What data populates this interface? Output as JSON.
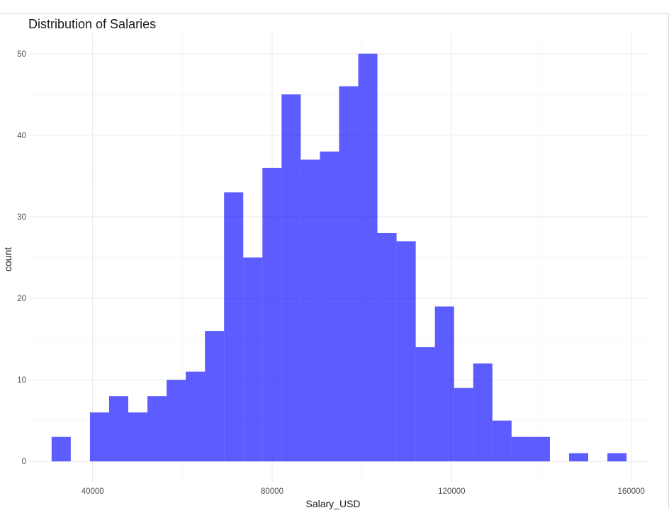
{
  "chart_data": {
    "type": "bar",
    "subtype": "histogram",
    "title": "Distribution of Salaries",
    "xlabel": "Salary_USD",
    "ylabel": "count",
    "xlim": [
      26000,
      164000
    ],
    "ylim": [
      -2.5,
      52.5
    ],
    "x_ticks": [
      40000,
      80000,
      120000,
      160000
    ],
    "x_tick_labels": [
      "40000",
      "80000",
      "120000",
      "160000"
    ],
    "x_minor_ticks": [
      60000,
      100000,
      140000
    ],
    "y_ticks": [
      0,
      10,
      20,
      30,
      40,
      50
    ],
    "y_tick_labels": [
      "0",
      "10",
      "20",
      "30",
      "40",
      "50"
    ],
    "y_minor_ticks": [
      5,
      15,
      25,
      35,
      45
    ],
    "bin_width": 4270,
    "bar_color": "#0000ff",
    "bar_alpha": 0.64,
    "grid": true,
    "legend": "none",
    "bins": [
      {
        "x": 33000,
        "count": 3
      },
      {
        "x": 37270,
        "count": 0
      },
      {
        "x": 41540,
        "count": 6
      },
      {
        "x": 45810,
        "count": 8
      },
      {
        "x": 50080,
        "count": 6
      },
      {
        "x": 54350,
        "count": 8
      },
      {
        "x": 58620,
        "count": 10
      },
      {
        "x": 62890,
        "count": 11
      },
      {
        "x": 67160,
        "count": 16
      },
      {
        "x": 71430,
        "count": 33
      },
      {
        "x": 75700,
        "count": 25
      },
      {
        "x": 79970,
        "count": 36
      },
      {
        "x": 84240,
        "count": 45
      },
      {
        "x": 88510,
        "count": 37
      },
      {
        "x": 92780,
        "count": 38
      },
      {
        "x": 97050,
        "count": 46
      },
      {
        "x": 101320,
        "count": 50
      },
      {
        "x": 105590,
        "count": 28
      },
      {
        "x": 109860,
        "count": 27
      },
      {
        "x": 114130,
        "count": 14
      },
      {
        "x": 118400,
        "count": 19
      },
      {
        "x": 122670,
        "count": 9
      },
      {
        "x": 126940,
        "count": 12
      },
      {
        "x": 131210,
        "count": 5
      },
      {
        "x": 135480,
        "count": 3
      },
      {
        "x": 139750,
        "count": 3
      },
      {
        "x": 144020,
        "count": 0
      },
      {
        "x": 148290,
        "count": 1
      },
      {
        "x": 152560,
        "count": 0
      },
      {
        "x": 156830,
        "count": 1
      }
    ]
  }
}
